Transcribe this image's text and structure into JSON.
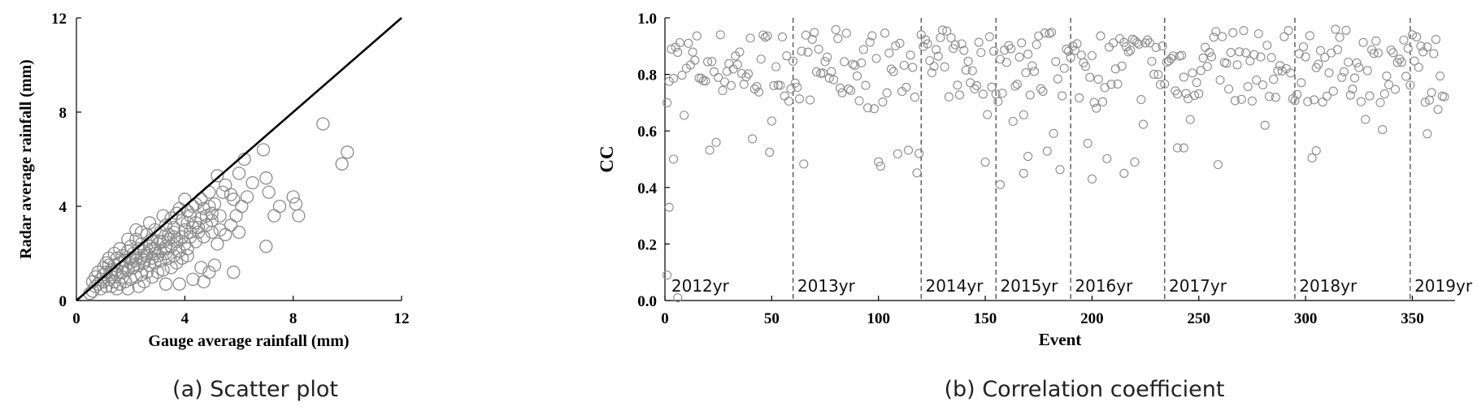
{
  "chart_data": [
    {
      "type": "scatter",
      "caption": "(a) Scatter plot",
      "xlabel": "Gauge average rainfall (mm)",
      "ylabel": "Radar average rainfall (mm)",
      "xlim": [
        0,
        12
      ],
      "ylim": [
        0,
        12
      ],
      "xticks": [
        "0",
        "4",
        "8",
        "12"
      ],
      "yticks": [
        "0",
        "4",
        "8",
        "12"
      ],
      "grid": false,
      "marker_color": "#8c8c8c",
      "line_color": "#000000",
      "reference_line": [
        [
          0,
          0
        ],
        [
          12,
          12
        ]
      ],
      "points": [
        [
          9.1,
          7.5
        ],
        [
          10.0,
          6.3
        ],
        [
          9.8,
          5.8
        ],
        [
          6.9,
          6.4
        ],
        [
          6.2,
          6.0
        ],
        [
          6.0,
          5.4
        ],
        [
          6.5,
          5.0
        ],
        [
          7.0,
          5.2
        ],
        [
          7.1,
          4.6
        ],
        [
          7.5,
          4.0
        ],
        [
          7.3,
          3.6
        ],
        [
          8.0,
          4.4
        ],
        [
          8.1,
          4.1
        ],
        [
          8.2,
          3.6
        ],
        [
          7.0,
          2.3
        ],
        [
          5.8,
          1.2
        ],
        [
          5.2,
          5.3
        ],
        [
          5.5,
          4.9
        ],
        [
          5.8,
          4.3
        ],
        [
          6.1,
          4.0
        ],
        [
          6.3,
          4.4
        ],
        [
          5.7,
          3.2
        ],
        [
          5.9,
          3.6
        ],
        [
          6.0,
          2.9
        ],
        [
          4.6,
          4.3
        ],
        [
          4.9,
          4.6
        ],
        [
          5.1,
          4.1
        ],
        [
          4.7,
          3.9
        ],
        [
          4.3,
          4.0
        ],
        [
          4.0,
          4.3
        ],
        [
          3.8,
          3.9
        ],
        [
          3.5,
          3.5
        ],
        [
          3.3,
          3.2
        ],
        [
          3.6,
          3.1
        ],
        [
          3.9,
          3.4
        ],
        [
          4.2,
          3.6
        ],
        [
          4.4,
          3.3
        ],
        [
          4.6,
          3.5
        ],
        [
          4.8,
          3.2
        ],
        [
          5.0,
          3.4
        ],
        [
          5.3,
          3.0
        ],
        [
          5.5,
          2.8
        ],
        [
          4.5,
          2.9
        ],
        [
          4.2,
          2.7
        ],
        [
          4.0,
          2.4
        ],
        [
          3.7,
          2.6
        ],
        [
          3.4,
          2.8
        ],
        [
          3.1,
          2.9
        ],
        [
          2.8,
          2.6
        ],
        [
          2.6,
          2.8
        ],
        [
          2.9,
          3.0
        ],
        [
          3.2,
          2.5
        ],
        [
          3.5,
          2.3
        ],
        [
          3.8,
          2.1
        ],
        [
          4.1,
          2.2
        ],
        [
          4.4,
          2.5
        ],
        [
          4.7,
          2.7
        ],
        [
          5.0,
          2.9
        ],
        [
          5.2,
          2.4
        ],
        [
          4.6,
          1.4
        ],
        [
          4.9,
          1.2
        ],
        [
          5.1,
          1.5
        ],
        [
          4.7,
          0.8
        ],
        [
          4.3,
          0.9
        ],
        [
          3.8,
          0.7
        ],
        [
          3.3,
          0.7
        ],
        [
          2.4,
          2.4
        ],
        [
          2.2,
          2.6
        ],
        [
          2.0,
          2.3
        ],
        [
          1.9,
          2.1
        ],
        [
          2.1,
          2.0
        ],
        [
          2.3,
          2.2
        ],
        [
          2.5,
          2.1
        ],
        [
          2.7,
          2.3
        ],
        [
          2.9,
          2.2
        ],
        [
          3.1,
          2.1
        ],
        [
          3.3,
          2.0
        ],
        [
          3.0,
          1.9
        ],
        [
          2.8,
          1.8
        ],
        [
          2.6,
          1.9
        ],
        [
          2.4,
          1.8
        ],
        [
          2.2,
          1.7
        ],
        [
          2.0,
          1.8
        ],
        [
          1.8,
          1.7
        ],
        [
          1.6,
          1.6
        ],
        [
          1.7,
          1.9
        ],
        [
          1.5,
          1.8
        ],
        [
          1.4,
          1.5
        ],
        [
          1.3,
          1.3
        ],
        [
          1.2,
          1.5
        ],
        [
          1.1,
          1.2
        ],
        [
          1.0,
          1.1
        ],
        [
          1.3,
          1.0
        ],
        [
          1.5,
          1.1
        ],
        [
          1.7,
          1.2
        ],
        [
          1.9,
          1.3
        ],
        [
          2.1,
          1.4
        ],
        [
          2.3,
          1.5
        ],
        [
          2.5,
          1.6
        ],
        [
          2.7,
          1.5
        ],
        [
          2.9,
          1.6
        ],
        [
          3.1,
          1.7
        ],
        [
          3.4,
          1.8
        ],
        [
          3.6,
          1.9
        ],
        [
          2.6,
          1.2
        ],
        [
          2.4,
          1.1
        ],
        [
          2.2,
          1.0
        ],
        [
          2.0,
          0.9
        ],
        [
          1.8,
          0.8
        ],
        [
          1.6,
          0.7
        ],
        [
          1.4,
          0.8
        ],
        [
          1.2,
          0.9
        ],
        [
          1.0,
          0.8
        ],
        [
          0.9,
          0.9
        ],
        [
          0.8,
          0.7
        ],
        [
          0.7,
          0.6
        ],
        [
          0.9,
          0.5
        ],
        [
          1.1,
          0.6
        ],
        [
          1.3,
          0.6
        ],
        [
          1.5,
          0.5
        ],
        [
          0.6,
          0.4
        ],
        [
          0.5,
          0.3
        ],
        [
          2.8,
          1.0
        ],
        [
          3.0,
          1.2
        ],
        [
          3.2,
          1.3
        ],
        [
          3.5,
          1.4
        ],
        [
          3.7,
          1.6
        ],
        [
          3.9,
          1.8
        ],
        [
          4.1,
          1.9
        ],
        [
          2.3,
          0.6
        ],
        [
          1.9,
          0.5
        ],
        [
          1.7,
          1.0
        ],
        [
          1.5,
          1.3
        ],
        [
          2.5,
          0.8
        ],
        [
          3.1,
          2.5
        ],
        [
          3.4,
          2.6
        ],
        [
          3.6,
          2.9
        ],
        [
          4.0,
          3.0
        ],
        [
          4.3,
          3.1
        ],
        [
          3.2,
          3.6
        ],
        [
          2.7,
          3.3
        ],
        [
          2.4,
          2.9
        ],
        [
          2.2,
          3.0
        ],
        [
          1.9,
          2.6
        ],
        [
          1.6,
          2.2
        ],
        [
          1.4,
          2.0
        ],
        [
          1.2,
          1.8
        ],
        [
          1.1,
          1.6
        ],
        [
          1.0,
          1.4
        ],
        [
          0.8,
          1.2
        ],
        [
          0.7,
          1.0
        ],
        [
          0.6,
          0.8
        ],
        [
          1.8,
          1.4
        ],
        [
          2.0,
          1.6
        ],
        [
          2.2,
          1.8
        ],
        [
          2.6,
          2.0
        ],
        [
          2.8,
          2.2
        ],
        [
          3.0,
          2.4
        ],
        [
          3.3,
          2.3
        ],
        [
          3.7,
          2.5
        ],
        [
          3.9,
          2.7
        ],
        [
          4.2,
          2.9
        ],
        [
          4.5,
          3.1
        ],
        [
          4.8,
          3.6
        ],
        [
          5.0,
          3.7
        ],
        [
          5.3,
          3.6
        ],
        [
          4.1,
          3.3
        ],
        [
          3.6,
          2.7
        ],
        [
          3.3,
          2.2
        ],
        [
          2.9,
          2.0
        ],
        [
          2.5,
          1.7
        ],
        [
          2.1,
          1.5
        ],
        [
          1.7,
          1.4
        ],
        [
          1.3,
          1.2
        ],
        [
          4.4,
          4.1
        ],
        [
          4.1,
          3.8
        ],
        [
          3.7,
          3.7
        ],
        [
          4.9,
          4.0
        ],
        [
          5.4,
          4.6
        ],
        [
          5.7,
          4.5
        ]
      ]
    },
    {
      "type": "scatter",
      "caption": "(b) Correlation coefficient",
      "xlabel": "Event",
      "ylabel": "CC",
      "xlim": [
        0,
        370
      ],
      "ylim": [
        0,
        1.0
      ],
      "xticks": [
        "0",
        "50",
        "100",
        "150",
        "200",
        "250",
        "300",
        "350"
      ],
      "yticks": [
        "0.0",
        "0.2",
        "0.4",
        "0.6",
        "0.8",
        "1.0"
      ],
      "grid": false,
      "marker_color": "#8c8c8c",
      "divider_color": "#555555",
      "year_dividers": [
        60,
        120,
        155,
        190,
        234,
        295,
        349
      ],
      "year_labels": [
        {
          "text": "2012yr",
          "x": 3
        },
        {
          "text": "2013yr",
          "x": 62
        },
        {
          "text": "2014yr",
          "x": 122
        },
        {
          "text": "2015yr",
          "x": 157
        },
        {
          "text": "2016yr",
          "x": 192
        },
        {
          "text": "2017yr",
          "x": 236
        },
        {
          "text": "2018yr",
          "x": 297
        },
        {
          "text": "2019yr",
          "x": 351
        }
      ]
    }
  ]
}
